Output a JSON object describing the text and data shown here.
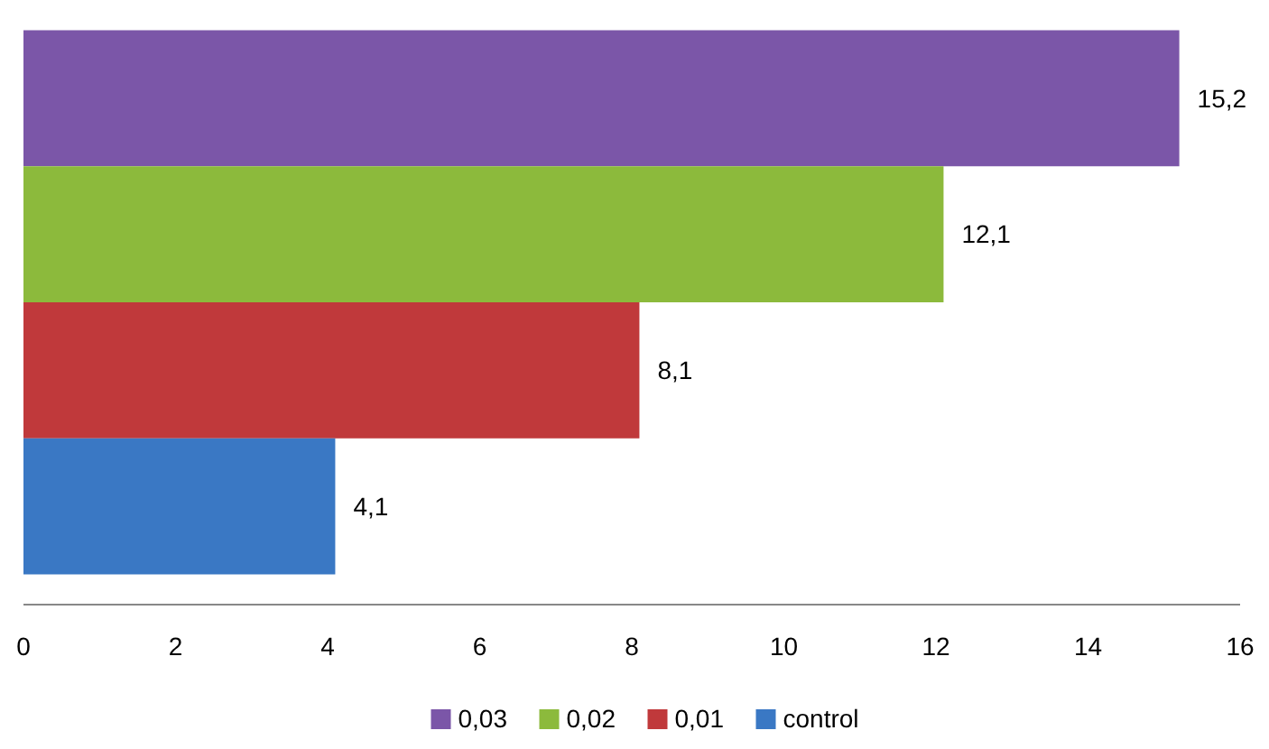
{
  "chart_data": {
    "type": "bar",
    "orientation": "horizontal",
    "categories": [
      null
    ],
    "series": [
      {
        "name": "0,03",
        "color": "#7b56a8",
        "values": [
          15.2
        ],
        "value_labels": [
          "15,2"
        ]
      },
      {
        "name": "0,02",
        "color": "#8cba3c",
        "values": [
          12.1
        ],
        "value_labels": [
          "12,1"
        ]
      },
      {
        "name": "0,01",
        "color": "#c0393b",
        "values": [
          8.1
        ],
        "value_labels": [
          "8,1"
        ]
      },
      {
        "name": "control",
        "color": "#3a78c4",
        "values": [
          4.1
        ],
        "value_labels": [
          "4,1"
        ]
      }
    ],
    "xlim": [
      0,
      16
    ],
    "xticks": [
      0,
      2,
      4,
      6,
      8,
      10,
      12,
      14,
      16
    ],
    "grid": false,
    "legend": "bottom"
  }
}
